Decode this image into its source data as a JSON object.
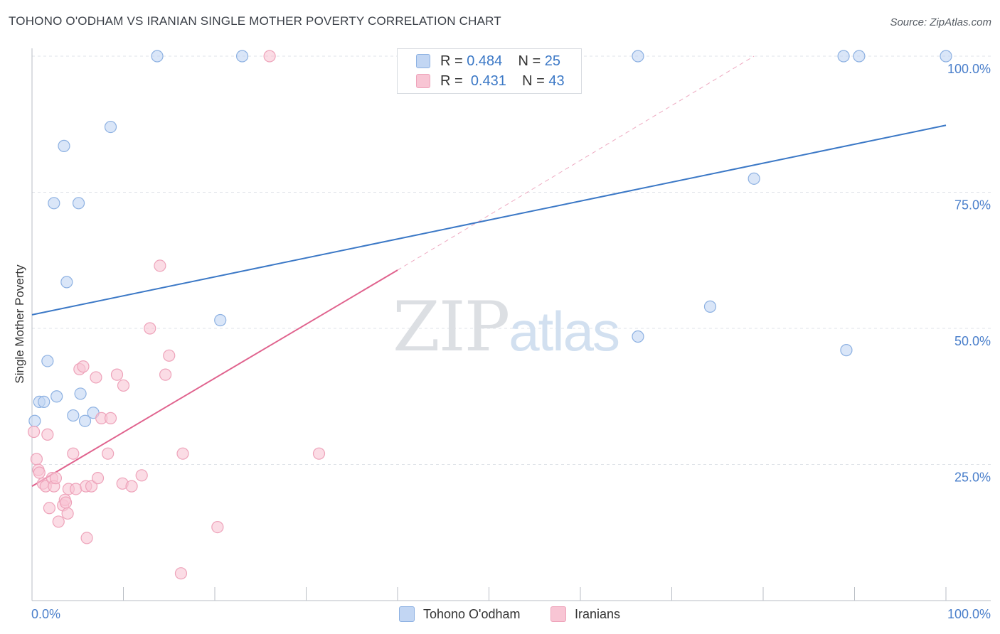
{
  "title": "TOHONO O'ODHAM VS IRANIAN SINGLE MOTHER POVERTY CORRELATION CHART",
  "source": "Source: ZipAtlas.com",
  "watermark": {
    "part1": "ZIP",
    "part2": "atlas"
  },
  "colors": {
    "blue": "#3b78c6",
    "blue_fill": "#c2d6f3",
    "blue_edge": "#8db1e2",
    "pink": "#e0638e",
    "pink_fill": "#f8c5d4",
    "pink_edge": "#eea3ba",
    "grid": "#dfe3e8",
    "axis_label": "#4a7fcb"
  },
  "legend_top": [
    {
      "name": "blue",
      "r_label": "R = ",
      "r_value": "0.484",
      "n_label": "N = ",
      "n_value": "25"
    },
    {
      "name": "pink",
      "r_label": "R = ",
      "r_value": "0.431",
      "n_label": "N = ",
      "n_value": "43"
    }
  ],
  "legend_bottom": [
    {
      "label": "Tohono O'odham",
      "color": "blue"
    },
    {
      "label": "Iranians",
      "color": "pink"
    }
  ],
  "chart_data": {
    "type": "scatter",
    "title": "TOHONO O'ODHAM VS IRANIAN SINGLE MOTHER POVERTY CORRELATION CHART",
    "xlabel": "",
    "ylabel": "Single Mother Poverty",
    "xlim": [
      0,
      100
    ],
    "ylim": [
      0,
      100
    ],
    "x_tick_labels": [
      "0.0%",
      "100.0%"
    ],
    "y_ticks": [
      25,
      50,
      75,
      100
    ],
    "y_tick_labels": [
      "25.0%",
      "50.0%",
      "75.0%",
      "100.0%"
    ],
    "series": [
      {
        "name": "Tohono O'odham",
        "color": "blue",
        "r": 0.484,
        "n": 25,
        "points": [
          [
            0.3,
            33
          ],
          [
            0.8,
            36.5
          ],
          [
            1.3,
            36.5
          ],
          [
            1.7,
            44
          ],
          [
            2.7,
            37.5
          ],
          [
            2.4,
            73
          ],
          [
            3.5,
            83.5
          ],
          [
            3.8,
            58.5
          ],
          [
            5.1,
            73
          ],
          [
            5.3,
            38
          ],
          [
            4.5,
            34
          ],
          [
            5.8,
            33
          ],
          [
            6.7,
            34.5
          ],
          [
            8.6,
            87
          ],
          [
            13.7,
            100
          ],
          [
            23,
            100
          ],
          [
            20.6,
            51.5
          ],
          [
            66.3,
            100
          ],
          [
            79,
            77.5
          ],
          [
            74.2,
            54
          ],
          [
            66.3,
            48.5
          ],
          [
            89.1,
            46
          ],
          [
            88.8,
            100
          ],
          [
            90.5,
            100
          ],
          [
            100,
            100
          ]
        ],
        "trend": {
          "x": [
            0,
            100
          ],
          "y": [
            52.5,
            87.3
          ],
          "style": "solid"
        }
      },
      {
        "name": "Iranians",
        "color": "pink",
        "r": 0.431,
        "n": 43,
        "points": [
          [
            0.2,
            31
          ],
          [
            0.5,
            26
          ],
          [
            0.7,
            24
          ],
          [
            1.2,
            21.5
          ],
          [
            1.5,
            21
          ],
          [
            1.7,
            30.5
          ],
          [
            1.9,
            17
          ],
          [
            2.2,
            22.5
          ],
          [
            2.4,
            21
          ],
          [
            2.6,
            22.5
          ],
          [
            2.9,
            14.5
          ],
          [
            3.4,
            17.5
          ],
          [
            3.6,
            18.5
          ],
          [
            3.7,
            18
          ],
          [
            3.9,
            16
          ],
          [
            4.0,
            20.5
          ],
          [
            4.5,
            27
          ],
          [
            4.8,
            20.5
          ],
          [
            5.2,
            42.5
          ],
          [
            5.6,
            43
          ],
          [
            5.9,
            21
          ],
          [
            6.0,
            11.5
          ],
          [
            6.5,
            21
          ],
          [
            7.0,
            41
          ],
          [
            7.2,
            22.5
          ],
          [
            7.6,
            33.5
          ],
          [
            8.3,
            27
          ],
          [
            8.6,
            33.5
          ],
          [
            9.3,
            41.5
          ],
          [
            9.9,
            21.5
          ],
          [
            10.0,
            39.5
          ],
          [
            10.9,
            21
          ],
          [
            12.0,
            23
          ],
          [
            12.9,
            50
          ],
          [
            14.0,
            61.5
          ],
          [
            14.6,
            41.5
          ],
          [
            15.0,
            45
          ],
          [
            16.3,
            5
          ],
          [
            16.5,
            27
          ],
          [
            20.3,
            13.5
          ],
          [
            26,
            100
          ],
          [
            31.4,
            27
          ],
          [
            0.8,
            23.5
          ]
        ],
        "trend": {
          "x": [
            0,
            40
          ],
          "y": [
            21,
            60.7
          ],
          "style": "solid"
        },
        "trend_extension": {
          "x": [
            40,
            79
          ],
          "y": [
            60.7,
            100
          ],
          "style": "dashed"
        }
      }
    ]
  }
}
